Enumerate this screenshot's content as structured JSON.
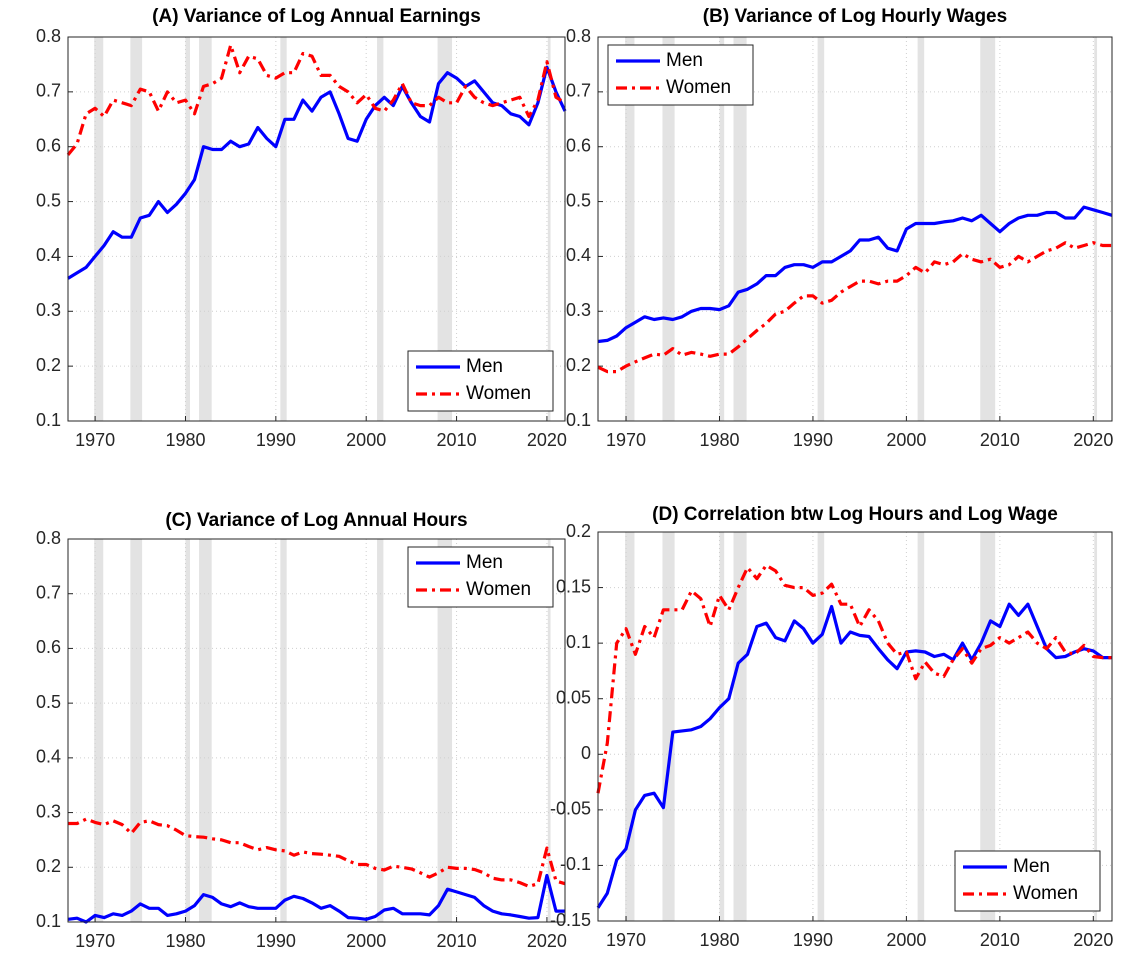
{
  "chart_data": [
    {
      "type": "line",
      "title": "(A) Variance of Log Annual Earnings",
      "x": [
        1967,
        1968,
        1969,
        1970,
        1971,
        1972,
        1973,
        1974,
        1975,
        1976,
        1977,
        1978,
        1979,
        1980,
        1981,
        1982,
        1983,
        1984,
        1985,
        1986,
        1987,
        1988,
        1989,
        1990,
        1991,
        1992,
        1993,
        1994,
        1995,
        1996,
        1997,
        1998,
        1999,
        2000,
        2001,
        2002,
        2003,
        2004,
        2005,
        2006,
        2007,
        2008,
        2009,
        2010,
        2011,
        2012,
        2013,
        2014,
        2015,
        2016,
        2017,
        2018,
        2019,
        2020,
        2021,
        2022
      ],
      "series": [
        {
          "name": "Men",
          "color": "#0000ff",
          "values": [
            0.36,
            0.37,
            0.38,
            0.4,
            0.42,
            0.445,
            0.435,
            0.435,
            0.47,
            0.475,
            0.5,
            0.48,
            0.495,
            0.515,
            0.54,
            0.6,
            0.595,
            0.595,
            0.61,
            0.6,
            0.605,
            0.635,
            0.615,
            0.6,
            0.65,
            0.65,
            0.685,
            0.665,
            0.69,
            0.7,
            0.66,
            0.615,
            0.61,
            0.65,
            0.675,
            0.69,
            0.675,
            0.71,
            0.68,
            0.655,
            0.645,
            0.715,
            0.735,
            0.725,
            0.71,
            0.72,
            0.7,
            0.68,
            0.675,
            0.66,
            0.655,
            0.64,
            0.68,
            0.745,
            0.7,
            0.665
          ]
        },
        {
          "name": "Women",
          "color": "#ff0000",
          "values": [
            0.585,
            0.605,
            0.66,
            0.67,
            0.655,
            0.685,
            0.68,
            0.675,
            0.705,
            0.7,
            0.665,
            0.7,
            0.68,
            0.685,
            0.66,
            0.71,
            0.715,
            0.725,
            0.785,
            0.735,
            0.765,
            0.76,
            0.73,
            0.725,
            0.735,
            0.735,
            0.77,
            0.765,
            0.73,
            0.73,
            0.71,
            0.7,
            0.68,
            0.695,
            0.67,
            0.665,
            0.685,
            0.715,
            0.68,
            0.675,
            0.675,
            0.69,
            0.68,
            0.68,
            0.71,
            0.69,
            0.68,
            0.675,
            0.68,
            0.685,
            0.69,
            0.655,
            0.685,
            0.755,
            0.69,
            0.68
          ]
        }
      ],
      "shaded_x": [
        [
          1969.9,
          1970.9
        ],
        [
          1973.9,
          1975.2
        ],
        [
          1980.0,
          1980.5
        ],
        [
          1981.5,
          1982.9
        ],
        [
          1990.5,
          1991.2
        ],
        [
          2001.2,
          2001.9
        ],
        [
          2007.9,
          2009.5
        ],
        [
          2020.1,
          2020.4
        ]
      ],
      "xlim": [
        1967,
        2022
      ],
      "xticks": [
        1970,
        1980,
        1990,
        2000,
        2010,
        2020
      ],
      "ylim": [
        0.1,
        0.8
      ],
      "yticks": [
        0.1,
        0.2,
        0.3,
        0.4,
        0.5,
        0.6,
        0.7,
        0.8
      ],
      "grid": true,
      "legend": "lower right"
    },
    {
      "type": "line",
      "title": "(B) Variance of Log Hourly Wages",
      "x": [
        1967,
        1968,
        1969,
        1970,
        1971,
        1972,
        1973,
        1974,
        1975,
        1976,
        1977,
        1978,
        1979,
        1980,
        1981,
        1982,
        1983,
        1984,
        1985,
        1986,
        1987,
        1988,
        1989,
        1990,
        1991,
        1992,
        1993,
        1994,
        1995,
        1996,
        1997,
        1998,
        1999,
        2000,
        2001,
        2002,
        2003,
        2004,
        2005,
        2006,
        2007,
        2008,
        2009,
        2010,
        2011,
        2012,
        2013,
        2014,
        2015,
        2016,
        2017,
        2018,
        2019,
        2020,
        2021,
        2022
      ],
      "series": [
        {
          "name": "Men",
          "color": "#0000ff",
          "values": [
            0.245,
            0.247,
            0.255,
            0.27,
            0.28,
            0.29,
            0.285,
            0.288,
            0.285,
            0.29,
            0.3,
            0.305,
            0.305,
            0.303,
            0.31,
            0.335,
            0.34,
            0.35,
            0.365,
            0.365,
            0.38,
            0.385,
            0.385,
            0.38,
            0.39,
            0.39,
            0.4,
            0.41,
            0.43,
            0.43,
            0.435,
            0.415,
            0.41,
            0.45,
            0.46,
            0.46,
            0.46,
            0.463,
            0.465,
            0.47,
            0.465,
            0.475,
            0.46,
            0.445,
            0.46,
            0.47,
            0.475,
            0.475,
            0.48,
            0.48,
            0.47,
            0.47,
            0.49,
            0.485,
            0.48,
            0.475
          ]
        },
        {
          "name": "Women",
          "color": "#ff0000",
          "values": [
            0.198,
            0.19,
            0.19,
            0.2,
            0.208,
            0.215,
            0.222,
            0.22,
            0.232,
            0.22,
            0.225,
            0.222,
            0.218,
            0.222,
            0.222,
            0.235,
            0.25,
            0.265,
            0.278,
            0.295,
            0.3,
            0.315,
            0.328,
            0.328,
            0.315,
            0.32,
            0.335,
            0.345,
            0.355,
            0.355,
            0.35,
            0.355,
            0.355,
            0.365,
            0.38,
            0.37,
            0.39,
            0.385,
            0.39,
            0.405,
            0.395,
            0.39,
            0.395,
            0.38,
            0.385,
            0.4,
            0.39,
            0.4,
            0.41,
            0.415,
            0.425,
            0.415,
            0.42,
            0.425,
            0.42,
            0.42
          ]
        }
      ],
      "shaded_x": [
        [
          1969.9,
          1970.9
        ],
        [
          1973.9,
          1975.2
        ],
        [
          1980.0,
          1980.5
        ],
        [
          1981.5,
          1982.9
        ],
        [
          1990.5,
          1991.2
        ],
        [
          2001.2,
          2001.9
        ],
        [
          2007.9,
          2009.5
        ],
        [
          2020.1,
          2020.4
        ]
      ],
      "xlim": [
        1967,
        2022
      ],
      "xticks": [
        1970,
        1980,
        1990,
        2000,
        2010,
        2020
      ],
      "ylim": [
        0.1,
        0.8
      ],
      "yticks": [
        0.1,
        0.2,
        0.3,
        0.4,
        0.5,
        0.6,
        0.7,
        0.8
      ],
      "grid": true,
      "legend": "upper left"
    },
    {
      "type": "line",
      "title": "(C) Variance of Log Annual Hours",
      "x": [
        1967,
        1968,
        1969,
        1970,
        1971,
        1972,
        1973,
        1974,
        1975,
        1976,
        1977,
        1978,
        1979,
        1980,
        1981,
        1982,
        1983,
        1984,
        1985,
        1986,
        1987,
        1988,
        1989,
        1990,
        1991,
        1992,
        1993,
        1994,
        1995,
        1996,
        1997,
        1998,
        1999,
        2000,
        2001,
        2002,
        2003,
        2004,
        2005,
        2006,
        2007,
        2008,
        2009,
        2010,
        2011,
        2012,
        2013,
        2014,
        2015,
        2016,
        2017,
        2018,
        2019,
        2020,
        2021,
        2022
      ],
      "series": [
        {
          "name": "Men",
          "color": "#0000ff",
          "values": [
            0.105,
            0.107,
            0.1,
            0.112,
            0.108,
            0.115,
            0.112,
            0.12,
            0.133,
            0.125,
            0.125,
            0.112,
            0.115,
            0.12,
            0.13,
            0.15,
            0.145,
            0.133,
            0.128,
            0.135,
            0.128,
            0.125,
            0.125,
            0.125,
            0.14,
            0.147,
            0.143,
            0.135,
            0.125,
            0.13,
            0.12,
            0.108,
            0.107,
            0.105,
            0.11,
            0.122,
            0.125,
            0.115,
            0.115,
            0.115,
            0.113,
            0.13,
            0.16,
            0.155,
            0.15,
            0.145,
            0.13,
            0.12,
            0.115,
            0.113,
            0.11,
            0.107,
            0.108,
            0.185,
            0.12,
            0.12
          ]
        },
        {
          "name": "Women",
          "color": "#ff0000",
          "values": [
            0.28,
            0.28,
            0.288,
            0.282,
            0.278,
            0.285,
            0.278,
            0.262,
            0.282,
            0.285,
            0.278,
            0.276,
            0.268,
            0.258,
            0.256,
            0.255,
            0.252,
            0.25,
            0.245,
            0.245,
            0.238,
            0.232,
            0.236,
            0.232,
            0.23,
            0.222,
            0.228,
            0.225,
            0.224,
            0.222,
            0.22,
            0.212,
            0.205,
            0.205,
            0.198,
            0.195,
            0.202,
            0.2,
            0.197,
            0.19,
            0.182,
            0.19,
            0.2,
            0.198,
            0.198,
            0.196,
            0.19,
            0.18,
            0.177,
            0.177,
            0.172,
            0.165,
            0.17,
            0.235,
            0.175,
            0.17
          ]
        }
      ],
      "shaded_x": [
        [
          1969.9,
          1970.9
        ],
        [
          1973.9,
          1975.2
        ],
        [
          1980.0,
          1980.5
        ],
        [
          1981.5,
          1982.9
        ],
        [
          1990.5,
          1991.2
        ],
        [
          2001.2,
          2001.9
        ],
        [
          2007.9,
          2009.5
        ],
        [
          2020.1,
          2020.4
        ]
      ],
      "xlim": [
        1967,
        2022
      ],
      "xticks": [
        1970,
        1980,
        1990,
        2000,
        2010,
        2020
      ],
      "ylim": [
        0.1,
        0.8
      ],
      "yticks": [
        0.1,
        0.2,
        0.3,
        0.4,
        0.5,
        0.6,
        0.7,
        0.8
      ],
      "grid": true,
      "legend": "upper right"
    },
    {
      "type": "line",
      "title": "(D) Correlation btw Log Hours and Log Wage",
      "x": [
        1967,
        1968,
        1969,
        1970,
        1971,
        1972,
        1973,
        1974,
        1975,
        1976,
        1977,
        1978,
        1979,
        1980,
        1981,
        1982,
        1983,
        1984,
        1985,
        1986,
        1987,
        1988,
        1989,
        1990,
        1991,
        1992,
        1993,
        1994,
        1995,
        1996,
        1997,
        1998,
        1999,
        2000,
        2001,
        2002,
        2003,
        2004,
        2005,
        2006,
        2007,
        2008,
        2009,
        2010,
        2011,
        2012,
        2013,
        2014,
        2015,
        2016,
        2017,
        2018,
        2019,
        2020,
        2021,
        2022
      ],
      "series": [
        {
          "name": "Men",
          "color": "#0000ff",
          "values": [
            -0.138,
            -0.125,
            -0.095,
            -0.085,
            -0.05,
            -0.037,
            -0.035,
            -0.048,
            0.02,
            0.021,
            0.022,
            0.025,
            0.032,
            0.042,
            0.05,
            0.082,
            0.09,
            0.115,
            0.118,
            0.105,
            0.102,
            0.12,
            0.113,
            0.1,
            0.108,
            0.133,
            0.1,
            0.11,
            0.107,
            0.106,
            0.095,
            0.085,
            0.077,
            0.092,
            0.093,
            0.092,
            0.088,
            0.09,
            0.085,
            0.1,
            0.085,
            0.1,
            0.12,
            0.115,
            0.135,
            0.125,
            0.135,
            0.115,
            0.095,
            0.087,
            0.088,
            0.092,
            0.095,
            0.093,
            0.087,
            0.087
          ]
        },
        {
          "name": "Women",
          "color": "#ff0000",
          "values": [
            -0.035,
            0.01,
            0.1,
            0.113,
            0.09,
            0.115,
            0.105,
            0.13,
            0.13,
            0.13,
            0.147,
            0.14,
            0.115,
            0.143,
            0.13,
            0.15,
            0.168,
            0.158,
            0.17,
            0.165,
            0.152,
            0.15,
            0.15,
            0.143,
            0.145,
            0.153,
            0.135,
            0.135,
            0.115,
            0.13,
            0.12,
            0.1,
            0.09,
            0.092,
            0.068,
            0.083,
            0.073,
            0.07,
            0.085,
            0.095,
            0.082,
            0.095,
            0.098,
            0.105,
            0.1,
            0.105,
            0.11,
            0.1,
            0.095,
            0.105,
            0.092,
            0.09,
            0.098,
            0.088,
            0.087,
            0.087
          ]
        }
      ],
      "shaded_x": [
        [
          1969.9,
          1970.9
        ],
        [
          1973.9,
          1975.2
        ],
        [
          1980.0,
          1980.5
        ],
        [
          1981.5,
          1982.9
        ],
        [
          1990.5,
          1991.2
        ],
        [
          2001.2,
          2001.9
        ],
        [
          2007.9,
          2009.5
        ],
        [
          2020.1,
          2020.4
        ]
      ],
      "xlim": [
        1967,
        2022
      ],
      "xticks": [
        1970,
        1980,
        1990,
        2000,
        2010,
        2020
      ],
      "ylim": [
        -0.15,
        0.2
      ],
      "yticks": [
        -0.15,
        -0.1,
        -0.05,
        0,
        0.05,
        0.1,
        0.15,
        0.2
      ],
      "grid": true,
      "legend": "lower right"
    }
  ]
}
